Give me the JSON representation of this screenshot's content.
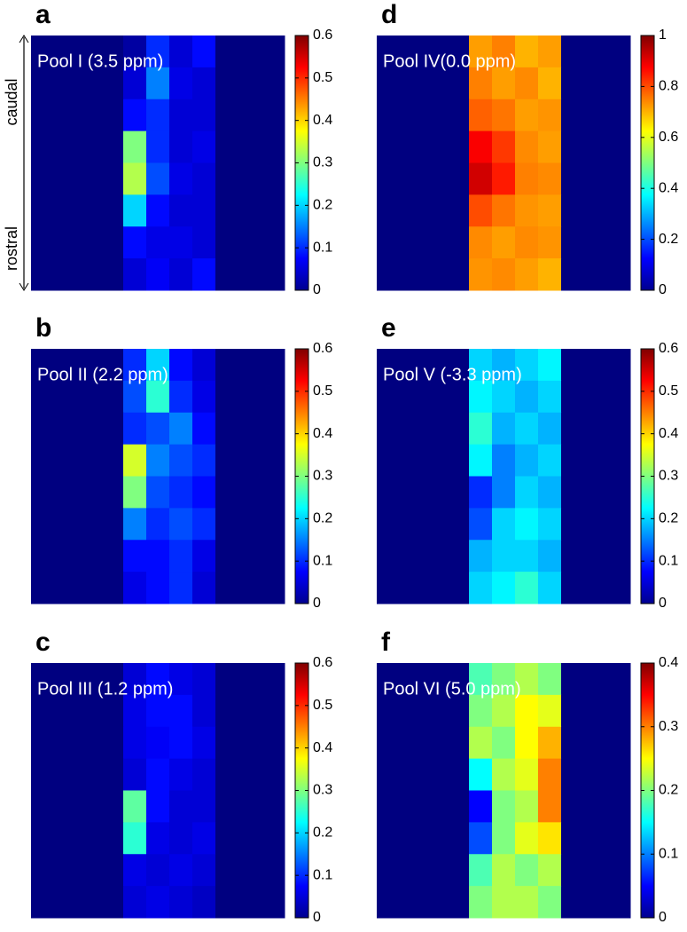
{
  "chart_data": [
    {
      "type": "heatmap",
      "label": "a",
      "title": "Pool I (3.5 ppm)",
      "annotations": [
        "caudal",
        "rostral"
      ],
      "zlim": [
        0,
        0.6
      ],
      "zticks": [
        0,
        0.1,
        0.2,
        0.3,
        0.4,
        0.5,
        0.6
      ],
      "z": [
        [
          0,
          0,
          0,
          0,
          0.02,
          0.1,
          0.05,
          0.08,
          0,
          0,
          0
        ],
        [
          0,
          0,
          0,
          0,
          0.05,
          0.15,
          0.06,
          0.05,
          0,
          0,
          0
        ],
        [
          0,
          0,
          0,
          0,
          0.08,
          0.1,
          0.05,
          0.05,
          0,
          0,
          0
        ],
        [
          0,
          0,
          0,
          0,
          0.3,
          0.1,
          0.05,
          0.06,
          0,
          0,
          0
        ],
        [
          0,
          0,
          0,
          0,
          0.33,
          0.12,
          0.06,
          0.05,
          0,
          0,
          0
        ],
        [
          0,
          0,
          0,
          0,
          0.2,
          0.08,
          0.05,
          0.05,
          0,
          0,
          0
        ],
        [
          0,
          0,
          0,
          0,
          0.08,
          0.06,
          0.06,
          0.05,
          0,
          0,
          0
        ],
        [
          0,
          0,
          0,
          0,
          0.05,
          0.07,
          0.05,
          0.08,
          0,
          0,
          0
        ]
      ]
    },
    {
      "type": "heatmap",
      "label": "b",
      "title": "Pool II (2.2 ppm)",
      "zlim": [
        0,
        0.6
      ],
      "zticks": [
        0,
        0.1,
        0.2,
        0.3,
        0.4,
        0.5,
        0.6
      ],
      "z": [
        [
          0,
          0,
          0,
          0,
          0.1,
          0.2,
          0.08,
          0.05,
          0,
          0,
          0
        ],
        [
          0,
          0,
          0,
          0,
          0.12,
          0.25,
          0.1,
          0.06,
          0,
          0,
          0
        ],
        [
          0,
          0,
          0,
          0,
          0.1,
          0.12,
          0.15,
          0.08,
          0,
          0,
          0
        ],
        [
          0,
          0,
          0,
          0,
          0.35,
          0.15,
          0.12,
          0.1,
          0,
          0,
          0
        ],
        [
          0,
          0,
          0,
          0,
          0.3,
          0.12,
          0.1,
          0.08,
          0,
          0,
          0
        ],
        [
          0,
          0,
          0,
          0,
          0.15,
          0.1,
          0.12,
          0.1,
          0,
          0,
          0
        ],
        [
          0,
          0,
          0,
          0,
          0.08,
          0.08,
          0.1,
          0.06,
          0,
          0,
          0
        ],
        [
          0,
          0,
          0,
          0,
          0.06,
          0.08,
          0.1,
          0.05,
          0,
          0,
          0
        ]
      ]
    },
    {
      "type": "heatmap",
      "label": "c",
      "title": "Pool III (1.2 ppm)",
      "zlim": [
        0,
        0.6
      ],
      "zticks": [
        0,
        0.1,
        0.2,
        0.3,
        0.4,
        0.5,
        0.6
      ],
      "z": [
        [
          0,
          0,
          0,
          0,
          0.05,
          0.08,
          0.06,
          0.05,
          0,
          0,
          0
        ],
        [
          0,
          0,
          0,
          0,
          0.06,
          0.08,
          0.08,
          0.05,
          0,
          0,
          0
        ],
        [
          0,
          0,
          0,
          0,
          0.06,
          0.07,
          0.08,
          0.06,
          0,
          0,
          0
        ],
        [
          0,
          0,
          0,
          0,
          0.05,
          0.08,
          0.06,
          0.05,
          0,
          0,
          0
        ],
        [
          0,
          0,
          0,
          0,
          0.28,
          0.08,
          0.05,
          0.05,
          0,
          0,
          0
        ],
        [
          0,
          0,
          0,
          0,
          0.25,
          0.06,
          0.05,
          0.06,
          0,
          0,
          0
        ],
        [
          0,
          0,
          0,
          0,
          0.06,
          0.05,
          0.06,
          0.05,
          0,
          0,
          0
        ],
        [
          0,
          0,
          0,
          0,
          0.05,
          0.06,
          0.05,
          0.04,
          0,
          0,
          0
        ]
      ]
    },
    {
      "type": "heatmap",
      "label": "d",
      "title": "Pool IV(0.0 ppm)",
      "zlim": [
        0,
        1
      ],
      "zticks": [
        0,
        0.2,
        0.4,
        0.6,
        0.8,
        1
      ],
      "z": [
        [
          0,
          0,
          0,
          0,
          0.72,
          0.75,
          0.7,
          0.72,
          0,
          0,
          0
        ],
        [
          0,
          0,
          0,
          0,
          0.75,
          0.72,
          0.74,
          0.7,
          0,
          0,
          0
        ],
        [
          0,
          0,
          0,
          0,
          0.78,
          0.76,
          0.72,
          0.73,
          0,
          0,
          0
        ],
        [
          0,
          0,
          0,
          0,
          0.88,
          0.82,
          0.74,
          0.72,
          0,
          0,
          0
        ],
        [
          0,
          0,
          0,
          0,
          0.92,
          0.85,
          0.75,
          0.74,
          0,
          0,
          0
        ],
        [
          0,
          0,
          0,
          0,
          0.8,
          0.76,
          0.73,
          0.72,
          0,
          0,
          0
        ],
        [
          0,
          0,
          0,
          0,
          0.74,
          0.72,
          0.74,
          0.73,
          0,
          0,
          0
        ],
        [
          0,
          0,
          0,
          0,
          0.73,
          0.74,
          0.72,
          0.7,
          0,
          0,
          0
        ]
      ]
    },
    {
      "type": "heatmap",
      "label": "e",
      "title": "Pool V (-3.3 ppm)",
      "zlim": [
        0,
        0.6
      ],
      "zticks": [
        0,
        0.1,
        0.2,
        0.3,
        0.4,
        0.5,
        0.6
      ],
      "z": [
        [
          0,
          0,
          0,
          0,
          0.2,
          0.18,
          0.2,
          0.22,
          0,
          0,
          0
        ],
        [
          0,
          0,
          0,
          0,
          0.22,
          0.2,
          0.18,
          0.2,
          0,
          0,
          0
        ],
        [
          0,
          0,
          0,
          0,
          0.25,
          0.18,
          0.2,
          0.18,
          0,
          0,
          0
        ],
        [
          0,
          0,
          0,
          0,
          0.22,
          0.15,
          0.18,
          0.2,
          0,
          0,
          0
        ],
        [
          0,
          0,
          0,
          0,
          0.1,
          0.15,
          0.2,
          0.18,
          0,
          0,
          0
        ],
        [
          0,
          0,
          0,
          0,
          0.12,
          0.2,
          0.22,
          0.2,
          0,
          0,
          0
        ],
        [
          0,
          0,
          0,
          0,
          0.18,
          0.2,
          0.2,
          0.18,
          0,
          0,
          0
        ],
        [
          0,
          0,
          0,
          0,
          0.2,
          0.22,
          0.25,
          0.2,
          0,
          0,
          0
        ]
      ]
    },
    {
      "type": "heatmap",
      "label": "f",
      "title": "Pool VI (5.0 ppm)",
      "zlim": [
        0,
        0.4
      ],
      "zticks": [
        0,
        0.1,
        0.2,
        0.3,
        0.4
      ],
      "z": [
        [
          0,
          0,
          0,
          0,
          0.18,
          0.2,
          0.22,
          0.2,
          0,
          0,
          0
        ],
        [
          0,
          0,
          0,
          0,
          0.2,
          0.22,
          0.25,
          0.24,
          0,
          0,
          0
        ],
        [
          0,
          0,
          0,
          0,
          0.22,
          0.2,
          0.25,
          0.28,
          0,
          0,
          0
        ],
        [
          0,
          0,
          0,
          0,
          0.15,
          0.22,
          0.24,
          0.3,
          0,
          0,
          0
        ],
        [
          0,
          0,
          0,
          0,
          0.05,
          0.2,
          0.22,
          0.3,
          0,
          0,
          0
        ],
        [
          0,
          0,
          0,
          0,
          0.08,
          0.2,
          0.24,
          0.26,
          0,
          0,
          0
        ],
        [
          0,
          0,
          0,
          0,
          0.18,
          0.22,
          0.2,
          0.22,
          0,
          0,
          0
        ],
        [
          0,
          0,
          0,
          0,
          0.2,
          0.22,
          0.22,
          0.2,
          0,
          0,
          0
        ]
      ]
    }
  ]
}
